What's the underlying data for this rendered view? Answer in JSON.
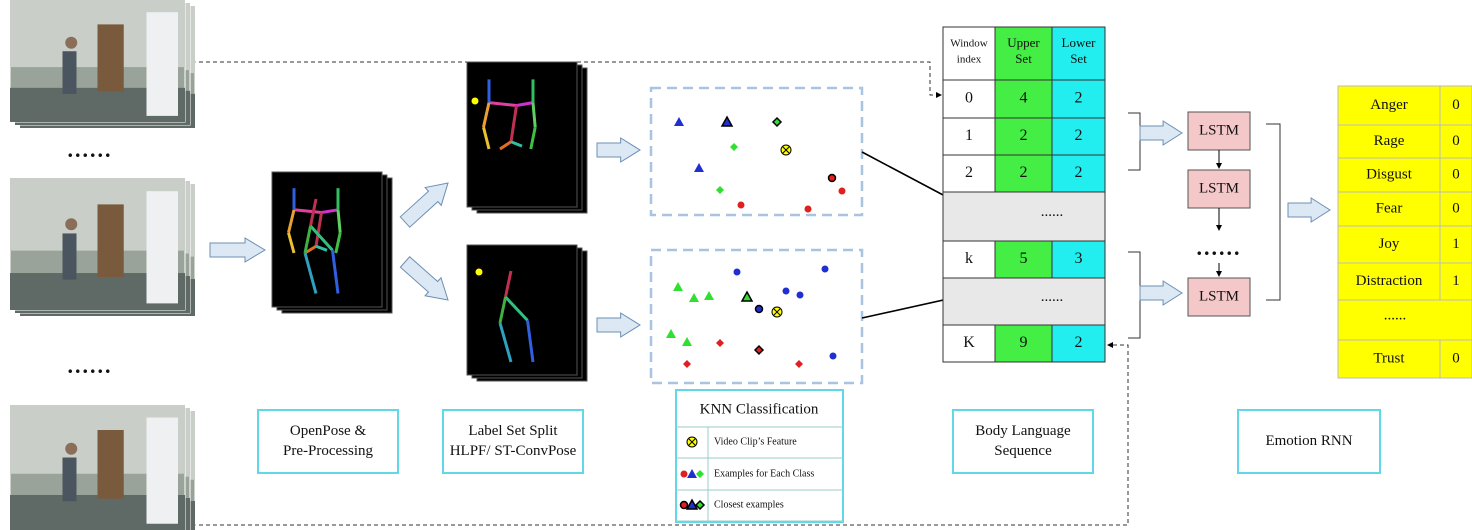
{
  "frame_ellipses": [
    "......",
    "......"
  ],
  "stage_labels": [
    {
      "lines": [
        "OpenPose &",
        "Pre-Processing"
      ]
    },
    {
      "lines": [
        "Label Set Split",
        "HLPF/ ST-ConvPose"
      ]
    },
    {
      "lines": [
        "Body Language",
        "Sequence"
      ]
    },
    {
      "lines": [
        "Emotion RNN"
      ]
    }
  ],
  "knn_legend": {
    "title": "KNN Classification",
    "items": [
      "Video Clip’s Feature",
      "Examples for Each Class",
      "Closest examples"
    ]
  },
  "sequence_table": {
    "header": [
      [
        "Window",
        "index"
      ],
      [
        "Upper",
        "Set"
      ],
      [
        "Lower",
        "Set"
      ]
    ],
    "rows": [
      [
        "0",
        "4",
        "2"
      ],
      [
        "1",
        "2",
        "2"
      ],
      [
        "2",
        "2",
        "2"
      ],
      [
        "......"
      ],
      [
        "k",
        "5",
        "3"
      ],
      [
        "......"
      ],
      [
        "K",
        "9",
        "2"
      ]
    ]
  },
  "lstm": {
    "cells": [
      "LSTM",
      "LSTM",
      "LSTM"
    ],
    "ellipsis": "......"
  },
  "emotions": {
    "rows": [
      [
        "Anger",
        "0"
      ],
      [
        "Rage",
        "0"
      ],
      [
        "Disgust",
        "0"
      ],
      [
        "Fear",
        "0"
      ],
      [
        "Joy",
        "1"
      ],
      [
        "Distraction",
        "1"
      ],
      [
        "......"
      ],
      [
        "Trust",
        "0"
      ]
    ]
  }
}
